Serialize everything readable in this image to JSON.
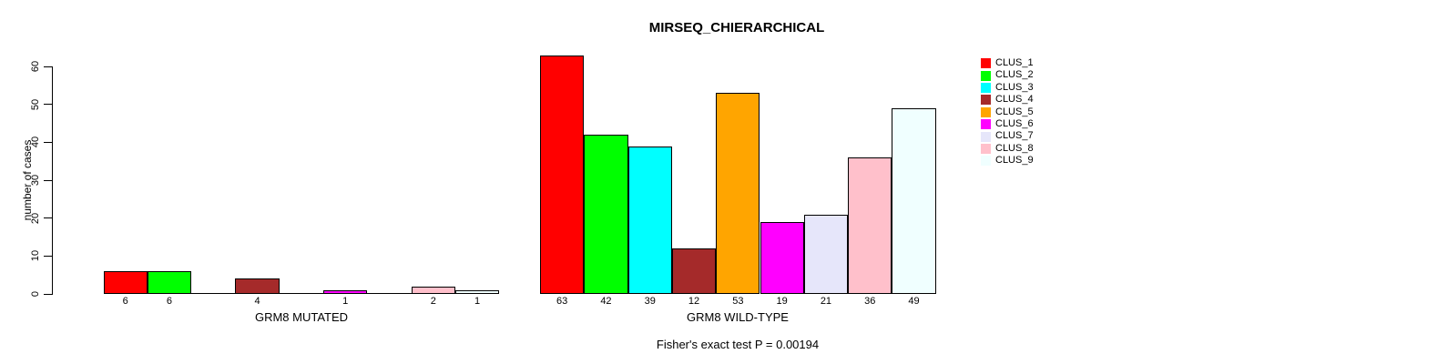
{
  "chart_data": {
    "type": "bar",
    "title": "MIRSEQ_CHIERARCHICAL",
    "ylabel": "number of cases",
    "ylim": [
      0,
      63
    ],
    "yticks": [
      0,
      10,
      20,
      30,
      40,
      50,
      60
    ],
    "grid": false,
    "legend_position": "right",
    "series_labels": [
      "CLUS_1",
      "CLUS_2",
      "CLUS_3",
      "CLUS_4",
      "CLUS_5",
      "CLUS_6",
      "CLUS_7",
      "CLUS_8",
      "CLUS_9"
    ],
    "colors": [
      "#FF0000",
      "#00FF00",
      "#00FFFF",
      "#A52A2A",
      "#FFA500",
      "#FF00FF",
      "#E6E6FA",
      "#FFC0CB",
      "#F0FFFF"
    ],
    "groups": [
      {
        "label": "GRM8 MUTATED",
        "values": [
          6,
          6,
          0,
          4,
          0,
          1,
          0,
          2,
          1
        ]
      },
      {
        "label": "GRM8 WILD-TYPE",
        "values": [
          63,
          42,
          39,
          12,
          53,
          19,
          21,
          36,
          49
        ]
      }
    ],
    "bar_value_labels_hidden_when_zero": true,
    "annotation": "Fisher's exact test P = 0.00194",
    "axis_color": "#000000",
    "background_color": "#FFFFFF"
  }
}
